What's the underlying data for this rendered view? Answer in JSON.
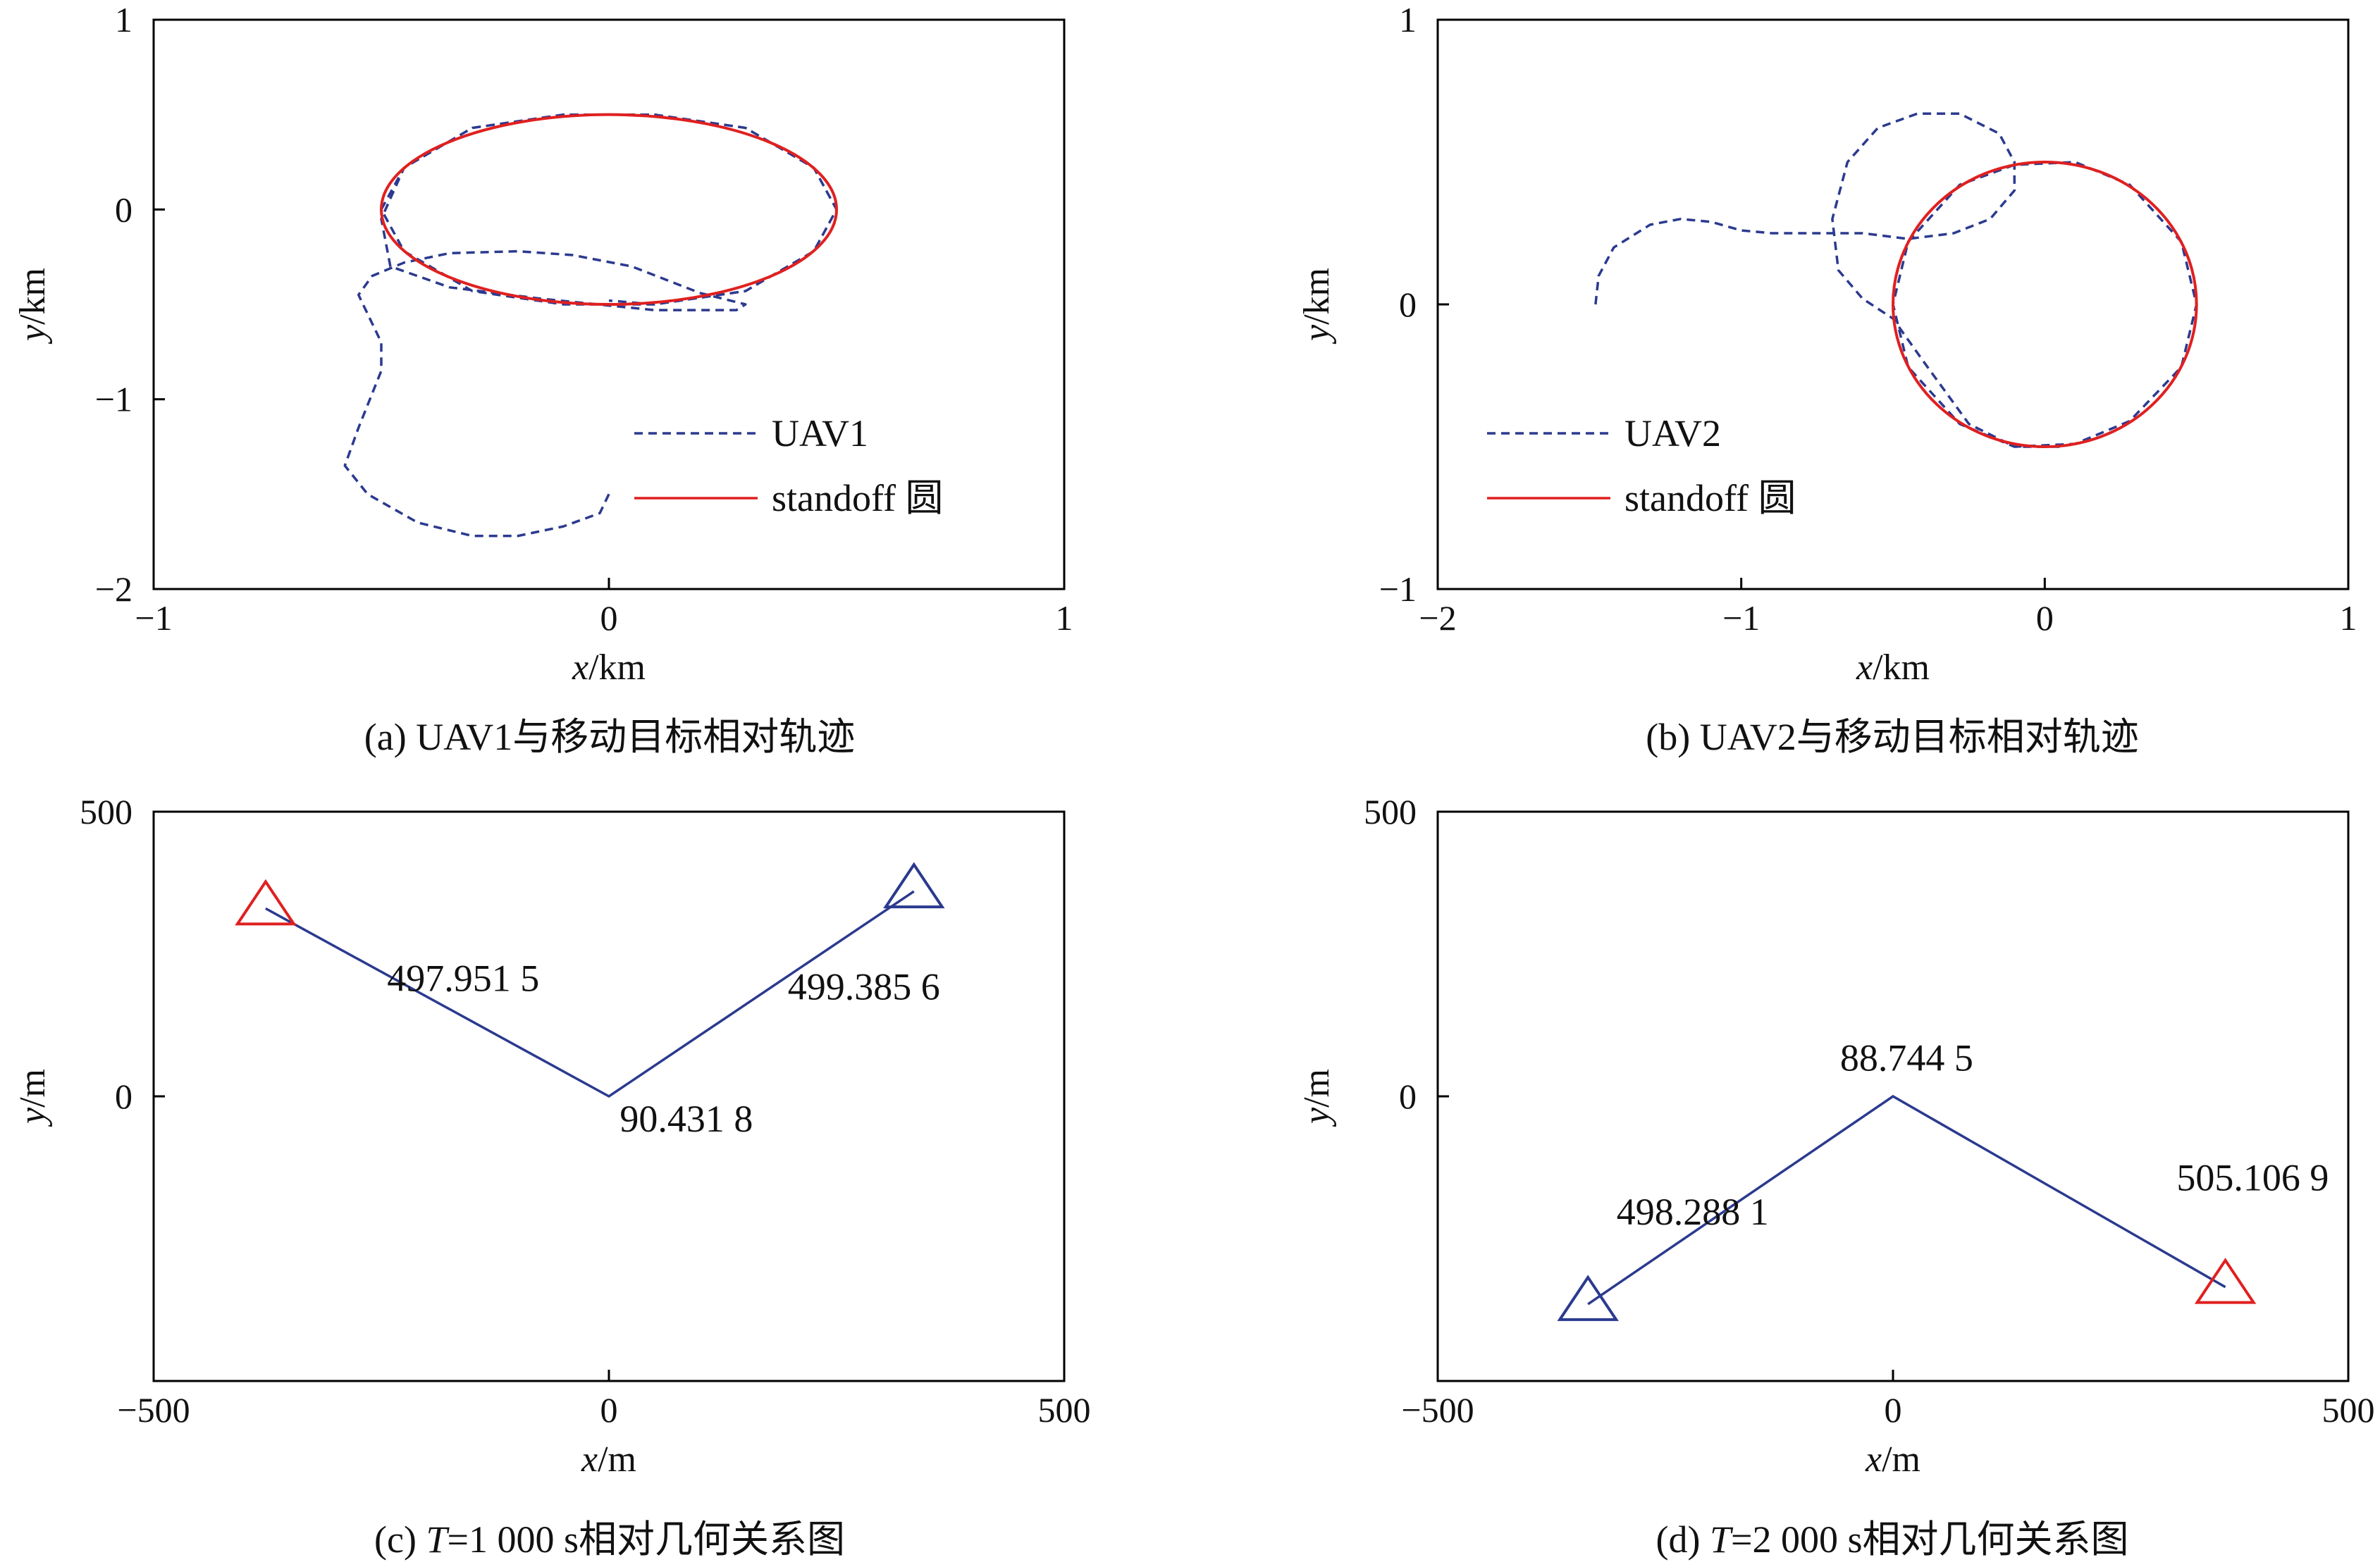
{
  "colors": {
    "uav": "#2b3a8f",
    "standoff": "#e02020",
    "axis": "#000000"
  },
  "captions": {
    "a": "(a) UAV1与移动目标相对轨迹",
    "b": "(b) UAV2与移动目标相对轨迹",
    "c_pre": "(c) ",
    "c_var": "T",
    "c_post": "=1 000 s相对几何关系图",
    "d_pre": "(d) ",
    "d_var": "T",
    "d_post": "=2 000 s相对几何关系图"
  },
  "chart_data": [
    {
      "id": "a",
      "type": "line",
      "xlabel_var": "x",
      "xlabel_unit": "/km",
      "ylabel_var": "y",
      "ylabel_unit": "/km",
      "xlim": [
        -1,
        1
      ],
      "ylim": [
        -2,
        1
      ],
      "xticks": [
        -1,
        0,
        1
      ],
      "yticks": [
        -2,
        -1,
        0,
        1
      ],
      "xtick_labels": [
        "−1",
        "0",
        "1"
      ],
      "ytick_labels": [
        "−2",
        "−1",
        "0",
        "1"
      ],
      "legend": [
        "UAV1",
        "standoff 圆"
      ],
      "legend_position": "bottom-right",
      "series": [
        {
          "name": "UAV1",
          "style": "dashed",
          "x": [
            0.0,
            -0.02,
            -0.1,
            -0.2,
            -0.3,
            -0.42,
            -0.53,
            -0.58,
            -0.55,
            -0.5,
            -0.5,
            -0.53,
            -0.55,
            -0.52,
            -0.45,
            -0.35,
            -0.2,
            -0.08,
            0.05,
            0.2,
            0.3,
            0.28,
            0.1,
            -0.15,
            -0.35,
            -0.48,
            -0.5,
            -0.45,
            -0.3,
            -0.1,
            0.1,
            0.3,
            0.45,
            0.5,
            0.45,
            0.3,
            0.1,
            -0.1,
            -0.3,
            -0.45,
            -0.5,
            -0.45,
            -0.3,
            -0.1,
            0.1,
            0.3,
            0.45,
            0.5,
            0.45,
            0.3,
            0.1,
            0.0
          ],
          "y": [
            -1.5,
            -1.6,
            -1.67,
            -1.72,
            -1.72,
            -1.65,
            -1.5,
            -1.35,
            -1.15,
            -0.85,
            -0.7,
            -0.55,
            -0.45,
            -0.35,
            -0.28,
            -0.23,
            -0.22,
            -0.24,
            -0.3,
            -0.44,
            -0.5,
            -0.53,
            -0.53,
            -0.47,
            -0.41,
            -0.3,
            -0.05,
            0.22,
            0.43,
            0.5,
            0.5,
            0.43,
            0.22,
            0.0,
            -0.22,
            -0.43,
            -0.5,
            -0.5,
            -0.43,
            -0.22,
            0.0,
            0.22,
            0.43,
            0.5,
            0.5,
            0.43,
            0.22,
            0.0,
            -0.22,
            -0.43,
            -0.5,
            -0.48
          ]
        },
        {
          "name": "standoff 圆",
          "style": "solid",
          "shape": "circle",
          "center": [
            0,
            0
          ],
          "radius_x": 0.5,
          "radius_y": 0.5
        }
      ]
    },
    {
      "id": "b",
      "type": "line",
      "xlabel_var": "x",
      "xlabel_unit": "/km",
      "ylabel_var": "y",
      "ylabel_unit": "/km",
      "xlim": [
        -2,
        1
      ],
      "ylim": [
        -1,
        1
      ],
      "xticks": [
        -2,
        -1,
        0,
        1
      ],
      "yticks": [
        -1,
        0,
        1
      ],
      "xtick_labels": [
        "−2",
        "−1",
        "0",
        "1"
      ],
      "ytick_labels": [
        "−1",
        "0",
        "1"
      ],
      "legend": [
        "UAV2",
        "standoff 圆"
      ],
      "legend_position": "bottom-left",
      "series": [
        {
          "name": "UAV2",
          "style": "dashed",
          "x": [
            -1.48,
            -1.47,
            -1.42,
            -1.3,
            -1.2,
            -1.1,
            -1.0,
            -0.9,
            -0.75,
            -0.6,
            -0.45,
            -0.3,
            -0.18,
            -0.1,
            -0.1,
            -0.15,
            -0.28,
            -0.42,
            -0.55,
            -0.65,
            -0.7,
            -0.68,
            -0.6,
            -0.5,
            -0.4,
            -0.25,
            -0.1,
            0.1,
            0.28,
            0.45,
            0.5,
            0.45,
            0.28,
            0.1,
            -0.1,
            -0.28,
            -0.45,
            -0.5,
            -0.45,
            -0.28,
            -0.1,
            0.05
          ],
          "y": [
            0.0,
            0.1,
            0.2,
            0.28,
            0.3,
            0.29,
            0.26,
            0.25,
            0.25,
            0.25,
            0.23,
            0.25,
            0.3,
            0.4,
            0.5,
            0.6,
            0.67,
            0.67,
            0.62,
            0.5,
            0.3,
            0.12,
            0.02,
            -0.05,
            -0.2,
            -0.42,
            -0.5,
            -0.49,
            -0.41,
            -0.22,
            0.0,
            0.22,
            0.42,
            0.5,
            0.49,
            0.42,
            0.22,
            0.0,
            -0.22,
            -0.42,
            -0.5,
            -0.5
          ]
        },
        {
          "name": "standoff 圆",
          "style": "solid",
          "shape": "circle",
          "center": [
            0,
            0
          ],
          "radius_x": 0.5,
          "radius_y": 0.5
        }
      ]
    },
    {
      "id": "c",
      "type": "line",
      "xlabel_var": "x",
      "xlabel_unit": "/m",
      "ylabel_var": "y",
      "ylabel_unit": "/m",
      "xlim": [
        -500,
        500
      ],
      "ylim": [
        -500,
        500
      ],
      "xticks": [
        -500,
        0,
        500
      ],
      "yticks": [
        -500,
        0,
        500
      ],
      "xtick_labels": [
        "−500",
        "0",
        "500"
      ],
      "ytick_labels": [
        "",
        "0",
        "500"
      ],
      "path": {
        "x": [
          -377,
          0,
          335
        ],
        "y": [
          330,
          0,
          360
        ]
      },
      "markers": [
        {
          "x": -377,
          "y": 330,
          "color": "standoff"
        },
        {
          "x": 335,
          "y": 360,
          "color": "uav"
        }
      ],
      "annotations": [
        {
          "text": "497.951 5",
          "x": -160,
          "y": 185
        },
        {
          "text": "499.385 6",
          "x": 280,
          "y": 170
        },
        {
          "text": "90.431 8",
          "x": 85,
          "y": -62
        }
      ]
    },
    {
      "id": "d",
      "type": "line",
      "xlabel_var": "x",
      "xlabel_unit": "/m",
      "ylabel_var": "y",
      "ylabel_unit": "/m",
      "xlim": [
        -500,
        500
      ],
      "ylim": [
        -500,
        500
      ],
      "xticks": [
        -500,
        0,
        500
      ],
      "yticks": [
        -500,
        0,
        500
      ],
      "xtick_labels": [
        "−500",
        "0",
        "500"
      ],
      "ytick_labels": [
        "",
        "0",
        "500"
      ],
      "path": {
        "x": [
          -335,
          0,
          365
        ],
        "y": [
          -365,
          0,
          -335
        ]
      },
      "markers": [
        {
          "x": -335,
          "y": -365,
          "color": "uav"
        },
        {
          "x": 365,
          "y": -335,
          "color": "standoff"
        }
      ],
      "annotations": [
        {
          "text": "88.744 5",
          "x": 15,
          "y": 45
        },
        {
          "text": "505.106 9",
          "x": 395,
          "y": -165
        },
        {
          "text": "498.288 1",
          "x": -220,
          "y": -225
        }
      ]
    }
  ]
}
